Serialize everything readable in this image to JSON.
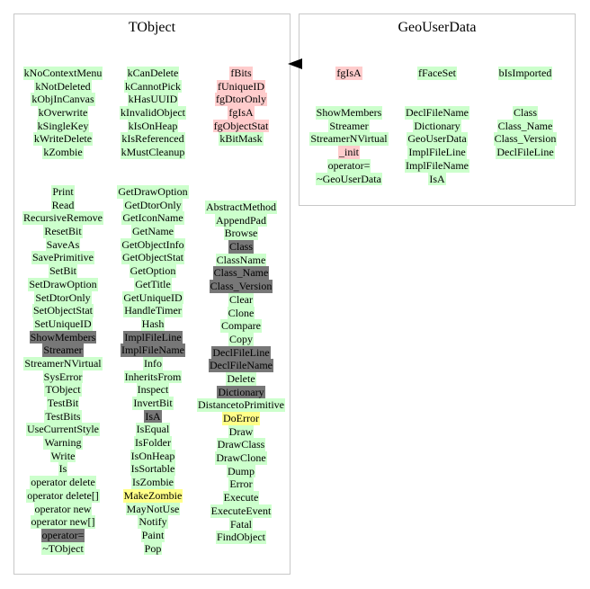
{
  "tobject": {
    "title": "TObject",
    "col1": [
      {
        "t": "kNoContextMenu",
        "c": "g"
      },
      {
        "t": "kNotDeleted",
        "c": "g"
      },
      {
        "t": "kObjInCanvas",
        "c": "g"
      },
      {
        "t": "kOverwrite",
        "c": "g"
      },
      {
        "t": "kSingleKey",
        "c": "g"
      },
      {
        "t": "kWriteDelete",
        "c": "g"
      },
      {
        "t": "kZombie",
        "c": "g"
      }
    ],
    "col2": [
      {
        "t": "kCanDelete",
        "c": "g"
      },
      {
        "t": "kCannotPick",
        "c": "g"
      },
      {
        "t": "kHasUUID",
        "c": "g"
      },
      {
        "t": "kInvalidObject",
        "c": "g"
      },
      {
        "t": "kIsOnHeap",
        "c": "g"
      },
      {
        "t": "kIsReferenced",
        "c": "g"
      },
      {
        "t": "kMustCleanup",
        "c": "g"
      }
    ],
    "col3": [
      {
        "t": "fBits",
        "c": "p"
      },
      {
        "t": "fUniqueID",
        "c": "p"
      },
      {
        "t": "fgDtorOnly",
        "c": "p"
      },
      {
        "t": "fgIsA",
        "c": "p"
      },
      {
        "t": "fgObjectStat",
        "c": "p"
      },
      {
        "t": "kBitMask",
        "c": "g"
      }
    ],
    "col4": [
      {
        "t": "Print",
        "c": "g"
      },
      {
        "t": "Read",
        "c": "g"
      },
      {
        "t": "RecursiveRemove",
        "c": "g"
      },
      {
        "t": "ResetBit",
        "c": "g"
      },
      {
        "t": "SaveAs",
        "c": "g"
      },
      {
        "t": "SavePrimitive",
        "c": "g"
      },
      {
        "t": "SetBit",
        "c": "g"
      },
      {
        "t": "SetDrawOption",
        "c": "g"
      },
      {
        "t": "SetDtorOnly",
        "c": "g"
      },
      {
        "t": "SetObjectStat",
        "c": "g"
      },
      {
        "t": "SetUniqueID",
        "c": "g"
      },
      {
        "t": "ShowMembers",
        "c": "d"
      },
      {
        "t": "Streamer",
        "c": "d"
      },
      {
        "t": "StreamerNVirtual",
        "c": "g"
      },
      {
        "t": "SysError",
        "c": "g"
      },
      {
        "t": "TObject",
        "c": "g"
      },
      {
        "t": "TestBit",
        "c": "g"
      },
      {
        "t": "TestBits",
        "c": "g"
      },
      {
        "t": "UseCurrentStyle",
        "c": "g"
      },
      {
        "t": "Warning",
        "c": "g"
      },
      {
        "t": "Write",
        "c": "g"
      },
      {
        "t": "Is",
        "c": "g"
      },
      {
        "t": "operator delete",
        "c": "g"
      },
      {
        "t": "operator delete[]",
        "c": "g"
      },
      {
        "t": "operator new",
        "c": "g"
      },
      {
        "t": "operator new[]",
        "c": "g"
      },
      {
        "t": "operator=",
        "c": "d"
      },
      {
        "t": "~TObject",
        "c": "g"
      }
    ],
    "col5": [
      {
        "t": "GetDrawOption",
        "c": "g"
      },
      {
        "t": "GetDtorOnly",
        "c": "g"
      },
      {
        "t": "GetIconName",
        "c": "g"
      },
      {
        "t": "GetName",
        "c": "g"
      },
      {
        "t": "GetObjectInfo",
        "c": "g"
      },
      {
        "t": "GetObjectStat",
        "c": "g"
      },
      {
        "t": "GetOption",
        "c": "g"
      },
      {
        "t": "GetTitle",
        "c": "g"
      },
      {
        "t": "GetUniqueID",
        "c": "g"
      },
      {
        "t": "HandleTimer",
        "c": "g"
      },
      {
        "t": "Hash",
        "c": "g"
      },
      {
        "t": "ImplFileLine",
        "c": "d"
      },
      {
        "t": "ImplFileName",
        "c": "d"
      },
      {
        "t": "Info",
        "c": "g"
      },
      {
        "t": "InheritsFrom",
        "c": "g"
      },
      {
        "t": "Inspect",
        "c": "g"
      },
      {
        "t": "InvertBit",
        "c": "g"
      },
      {
        "t": "IsA",
        "c": "d"
      },
      {
        "t": "IsEqual",
        "c": "g"
      },
      {
        "t": "IsFolder",
        "c": "g"
      },
      {
        "t": "IsOnHeap",
        "c": "g"
      },
      {
        "t": "IsSortable",
        "c": "g"
      },
      {
        "t": "IsZombie",
        "c": "g"
      },
      {
        "t": "MakeZombie",
        "c": "y"
      },
      {
        "t": "MayNotUse",
        "c": "g"
      },
      {
        "t": "Notify",
        "c": "g"
      },
      {
        "t": "Paint",
        "c": "g"
      },
      {
        "t": "Pop",
        "c": "g"
      }
    ],
    "col6": [
      {
        "t": "AbstractMethod",
        "c": "g"
      },
      {
        "t": "AppendPad",
        "c": "g"
      },
      {
        "t": "Browse",
        "c": "g"
      },
      {
        "t": "Class",
        "c": "d"
      },
      {
        "t": "ClassName",
        "c": "g"
      },
      {
        "t": "Class_Name",
        "c": "d"
      },
      {
        "t": "Class_Version",
        "c": "d"
      },
      {
        "t": "Clear",
        "c": "g"
      },
      {
        "t": "Clone",
        "c": "g"
      },
      {
        "t": "Compare",
        "c": "g"
      },
      {
        "t": "Copy",
        "c": "g"
      },
      {
        "t": "DeclFileLine",
        "c": "d"
      },
      {
        "t": "DeclFileName",
        "c": "d"
      },
      {
        "t": "Delete",
        "c": "g"
      },
      {
        "t": "Dictionary",
        "c": "d"
      },
      {
        "t": "DistancetoPrimitive",
        "c": "g"
      },
      {
        "t": "DoError",
        "c": "y"
      },
      {
        "t": "Draw",
        "c": "g"
      },
      {
        "t": "DrawClass",
        "c": "g"
      },
      {
        "t": "DrawClone",
        "c": "g"
      },
      {
        "t": "Dump",
        "c": "g"
      },
      {
        "t": "Error",
        "c": "g"
      },
      {
        "t": "Execute",
        "c": "g"
      },
      {
        "t": "ExecuteEvent",
        "c": "g"
      },
      {
        "t": "Fatal",
        "c": "g"
      },
      {
        "t": "FindObject",
        "c": "g"
      }
    ]
  },
  "geouserdata": {
    "title": "GeoUserData",
    "col1": [
      {
        "t": "fgIsA",
        "c": "p"
      },
      {
        "t": "",
        "c": "gap"
      },
      {
        "t": "",
        "c": "gap"
      },
      {
        "t": "ShowMembers",
        "c": "g"
      },
      {
        "t": "Streamer",
        "c": "g"
      },
      {
        "t": "StreamerNVirtual",
        "c": "g"
      },
      {
        "t": "_init",
        "c": "p"
      },
      {
        "t": "operator=",
        "c": "g"
      },
      {
        "t": "~GeoUserData",
        "c": "g"
      }
    ],
    "col2": [
      {
        "t": "fFaceSet",
        "c": "g"
      },
      {
        "t": "",
        "c": "gap"
      },
      {
        "t": "",
        "c": "gap"
      },
      {
        "t": "DeclFileName",
        "c": "g"
      },
      {
        "t": "Dictionary",
        "c": "g"
      },
      {
        "t": "GeoUserData",
        "c": "g"
      },
      {
        "t": "ImplFileLine",
        "c": "g"
      },
      {
        "t": "ImplFileName",
        "c": "g"
      },
      {
        "t": "IsA",
        "c": "g"
      }
    ],
    "col3": [
      {
        "t": "bIsImported",
        "c": "g"
      },
      {
        "t": "",
        "c": "gap"
      },
      {
        "t": "",
        "c": "gap"
      },
      {
        "t": "Class",
        "c": "g"
      },
      {
        "t": "Class_Name",
        "c": "g"
      },
      {
        "t": "Class_Version",
        "c": "g"
      },
      {
        "t": "DeclFileLine",
        "c": "g"
      }
    ]
  },
  "colors": {
    "public": "#ccffcc",
    "private": "#ffcccc",
    "inherited_overridden": "#777777",
    "protected": "#ffff88"
  }
}
